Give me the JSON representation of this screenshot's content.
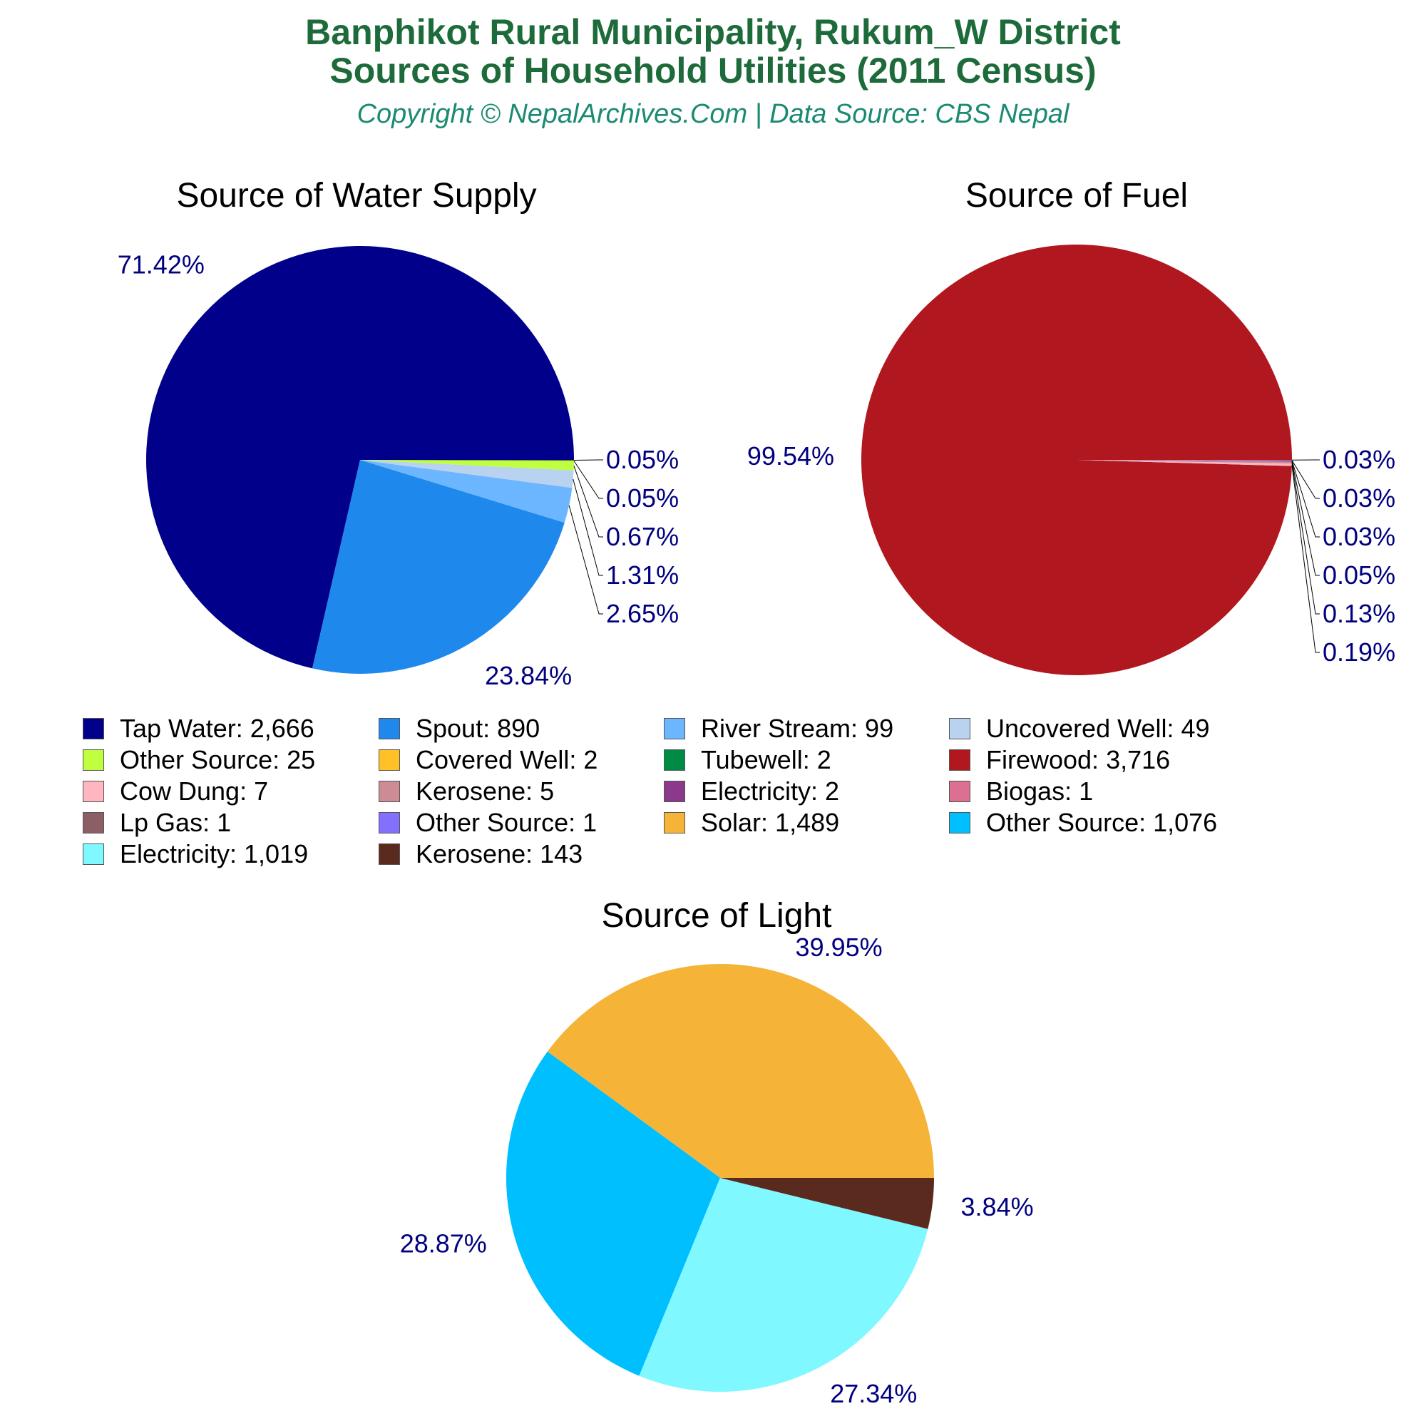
{
  "header": {
    "title_line1": "Banphikot Rural Municipality, Rukum_W District",
    "title_line2": "Sources of Household Utilities (2011 Census)",
    "subtitle": "Copyright © NepalArchives.Com | Data Source: CBS Nepal"
  },
  "label_color": "#000080",
  "chart_data": [
    {
      "type": "pie",
      "title": "Source of Water Supply",
      "slices": [
        {
          "label": "Tap Water",
          "value": 2666,
          "percent": "71.42%",
          "color": "#00008b"
        },
        {
          "label": "Spout",
          "value": 890,
          "percent": "23.84%",
          "color": "#1e88ec"
        },
        {
          "label": "River Stream",
          "value": 99,
          "percent": "2.65%",
          "color": "#6cb6ff"
        },
        {
          "label": "Uncovered Well",
          "value": 49,
          "percent": "1.31%",
          "color": "#b8d2ef"
        },
        {
          "label": "Other Source",
          "value": 25,
          "percent": "0.67%",
          "color": "#bfff3f"
        },
        {
          "label": "Covered Well",
          "value": 2,
          "percent": "0.05%",
          "color": "#ffc125"
        },
        {
          "label": "Tubewell",
          "value": 2,
          "percent": "0.05%",
          "color": "#008b45"
        }
      ]
    },
    {
      "type": "pie",
      "title": "Source of Fuel",
      "slices": [
        {
          "label": "Firewood",
          "value": 3716,
          "percent": "99.54%",
          "color": "#b0171f"
        },
        {
          "label": "Cow Dung",
          "value": 7,
          "percent": "0.19%",
          "color": "#ffb6c1"
        },
        {
          "label": "Kerosene",
          "value": 5,
          "percent": "0.13%",
          "color": "#cd8c95"
        },
        {
          "label": "Electricity",
          "value": 2,
          "percent": "0.05%",
          "color": "#8b3a8b"
        },
        {
          "label": "Biogas",
          "value": 1,
          "percent": "0.03%",
          "color": "#db7093"
        },
        {
          "label": "Lp Gas",
          "value": 1,
          "percent": "0.03%",
          "color": "#8b5f65"
        },
        {
          "label": "Other Source",
          "value": 1,
          "percent": "0.03%",
          "color": "#8470ff"
        }
      ]
    },
    {
      "type": "pie",
      "title": "Source of Light",
      "slices": [
        {
          "label": "Solar",
          "value": 1489,
          "percent": "39.95%",
          "color": "#f5b437"
        },
        {
          "label": "Other Source",
          "value": 1076,
          "percent": "28.87%",
          "color": "#00bfff"
        },
        {
          "label": "Electricity",
          "value": 1019,
          "percent": "27.34%",
          "color": "#7ff8ff"
        },
        {
          "label": "Kerosene",
          "value": 143,
          "percent": "3.84%",
          "color": "#5a2a1e"
        }
      ]
    }
  ],
  "legend": [
    {
      "text": "Tap Water: 2,666",
      "color": "#00008b"
    },
    {
      "text": "Spout: 890",
      "color": "#1e88ec"
    },
    {
      "text": "River Stream: 99",
      "color": "#6cb6ff"
    },
    {
      "text": "Uncovered Well: 49",
      "color": "#b8d2ef"
    },
    {
      "text": "Other Source: 25",
      "color": "#bfff3f"
    },
    {
      "text": "Covered Well: 2",
      "color": "#ffc125"
    },
    {
      "text": "Tubewell: 2",
      "color": "#008b45"
    },
    {
      "text": "Firewood: 3,716",
      "color": "#b0171f"
    },
    {
      "text": "Cow Dung: 7",
      "color": "#ffb6c1"
    },
    {
      "text": "Kerosene: 5",
      "color": "#cd8c95"
    },
    {
      "text": "Electricity: 2",
      "color": "#8b3a8b"
    },
    {
      "text": "Biogas: 1",
      "color": "#db7093"
    },
    {
      "text": "Lp Gas: 1",
      "color": "#8b5f65"
    },
    {
      "text": "Other Source: 1",
      "color": "#8470ff"
    },
    {
      "text": "Solar: 1,489",
      "color": "#f5b437"
    },
    {
      "text": "Other Source: 1,076",
      "color": "#00bfff"
    },
    {
      "text": "Electricity: 1,019",
      "color": "#7ff8ff"
    },
    {
      "text": "Kerosene: 143",
      "color": "#5a2a1e"
    }
  ]
}
